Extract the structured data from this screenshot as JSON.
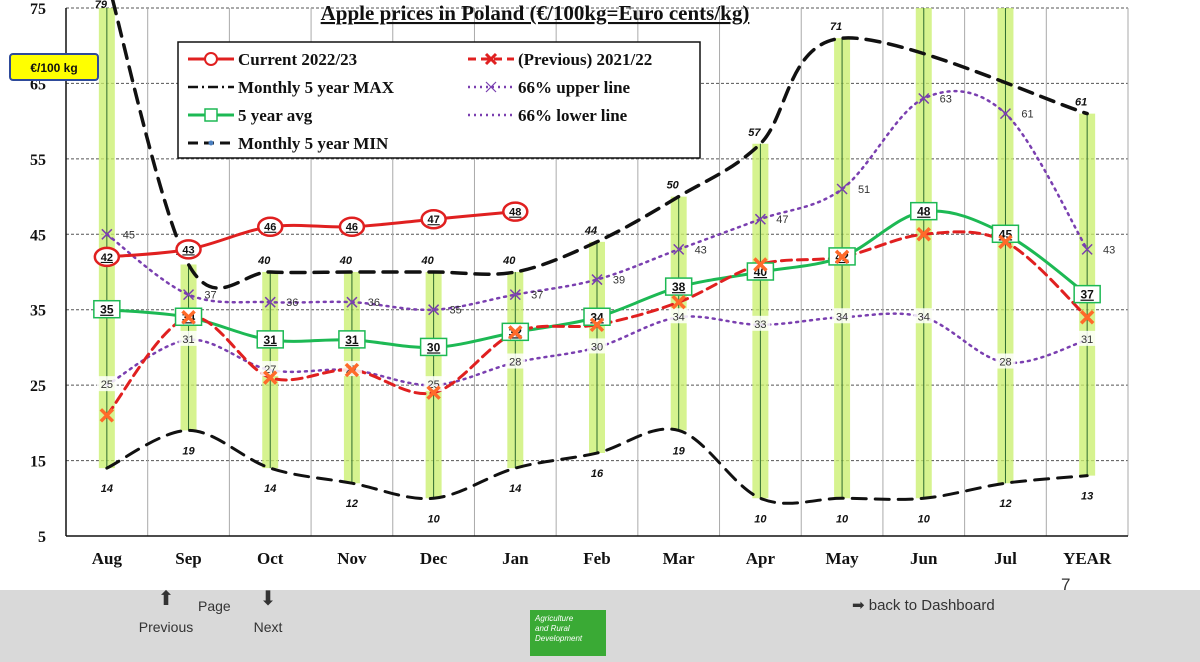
{
  "colors": {
    "current": "#e02020",
    "previous": "#e02020",
    "avg": "#1db954",
    "max": "#111111",
    "min": "#111111",
    "band": "#7a3fb0",
    "highlight": "#c9f06a"
  },
  "chart_data": {
    "type": "line",
    "title": "Apple prices in Poland (€/100kg=Euro cents/kg)",
    "unit_label": "€/100 kg",
    "categories": [
      "Aug",
      "Sep",
      "Oct",
      "Nov",
      "Dec",
      "Jan",
      "Feb",
      "Mar",
      "Apr",
      "May",
      "Jun",
      "Jul",
      "YEAR"
    ],
    "ylim": [
      5,
      75
    ],
    "yticks": [
      5,
      15,
      25,
      35,
      45,
      55,
      65,
      75
    ],
    "grid": true,
    "legend_placement": "top-left",
    "series": [
      {
        "name": "Current 2022/23",
        "key": "current",
        "values": [
          42,
          43,
          46,
          46,
          47,
          48,
          null,
          null,
          null,
          null,
          null,
          null,
          null
        ]
      },
      {
        "name": "(Previous) 2021/22",
        "key": "previous",
        "values": [
          21,
          34,
          26,
          27,
          24,
          32,
          33,
          36,
          41,
          42,
          45,
          44,
          34
        ]
      },
      {
        "name": "Monthly 5 year MAX",
        "key": "max",
        "values": [
          79,
          41,
          40,
          40,
          40,
          40,
          44,
          50,
          57,
          71,
          null,
          null,
          61
        ]
      },
      {
        "name": "66% upper line",
        "key": "upper",
        "values": [
          45,
          37,
          36,
          36,
          35,
          37,
          39,
          43,
          47,
          51,
          63,
          61,
          43
        ]
      },
      {
        "name": "5 year avg",
        "key": "avg",
        "values": [
          35,
          34,
          31,
          31,
          30,
          32,
          34,
          38,
          40,
          42,
          48,
          45,
          37
        ]
      },
      {
        "name": "66% lower line",
        "key": "lower",
        "values": [
          25,
          31,
          27,
          27,
          25,
          28,
          30,
          34,
          33,
          34,
          34,
          28,
          31
        ]
      },
      {
        "name": "Monthly 5 year MIN",
        "key": "min",
        "values": [
          14,
          19,
          14,
          12,
          10,
          14,
          16,
          19,
          10,
          10,
          10,
          12,
          13
        ]
      }
    ]
  },
  "nav": {
    "page_label": "Page",
    "previous_label": "Previous",
    "next_label": "Next",
    "dashboard_label": "back to Dashboard",
    "page_number": "7",
    "logo_text": [
      "Agriculture",
      "and Rural",
      "Development"
    ]
  }
}
